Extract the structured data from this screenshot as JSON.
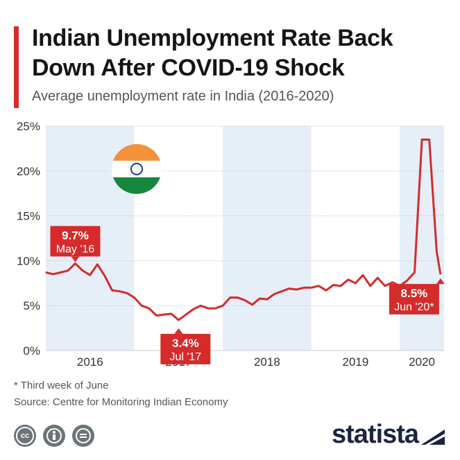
{
  "header": {
    "title": "Indian Unemployment Rate Back Down After COVID-19 Shock",
    "subtitle": "Average unemployment rate in India (2016-2020)"
  },
  "colors": {
    "accent": "#d52b2b",
    "band": "#e6eef8",
    "grid": "#c9cdd2",
    "text": "#333333"
  },
  "footer": {
    "footnote": "* Third week of June",
    "source": "Source: Centre for Monitoring Indian Economy",
    "logo": "statista",
    "license_icons": [
      "creative-commons-icon",
      "attribution-person-icon",
      "no-derivatives-equals-icon"
    ]
  },
  "chart_data": {
    "type": "line",
    "title": "Indian Unemployment Rate Back Down After COVID-19 Shock",
    "subtitle": "Average unemployment rate in India (2016-2020)",
    "xlabel": "",
    "ylabel": "",
    "x_ticks": [
      "2016",
      "2017",
      "2018",
      "2019",
      "2020"
    ],
    "y_ticks": [
      "0%",
      "5%",
      "10%",
      "15%",
      "20%",
      "25%"
    ],
    "ylim": [
      0,
      25
    ],
    "xlim": [
      2016.0,
      2020.5
    ],
    "grid": true,
    "legend": "none",
    "decoration": "india-flag-icon",
    "series": [
      {
        "x": [
          2016.0,
          2016.083,
          2016.167,
          2016.25,
          2016.333,
          2016.417,
          2016.5,
          2016.583,
          2016.667,
          2016.75,
          2016.833,
          2016.917,
          2017.0,
          2017.083,
          2017.167,
          2017.25,
          2017.333,
          2017.417,
          2017.5,
          2017.583,
          2017.667,
          2017.75,
          2017.833,
          2017.917,
          2018.0,
          2018.083,
          2018.167,
          2018.25,
          2018.333,
          2018.417,
          2018.5,
          2018.583,
          2018.667,
          2018.75,
          2018.833,
          2018.917,
          2019.0,
          2019.083,
          2019.167,
          2019.25,
          2019.333,
          2019.417,
          2019.5,
          2019.583,
          2019.667,
          2019.75,
          2019.833,
          2019.917,
          2020.0,
          2020.083,
          2020.167,
          2020.25,
          2020.333,
          2020.417,
          2020.46
        ],
        "values": [
          8.7,
          8.5,
          8.7,
          8.9,
          9.7,
          8.9,
          8.4,
          9.6,
          8.3,
          6.7,
          6.6,
          6.4,
          5.9,
          5.0,
          4.7,
          3.9,
          4.0,
          4.1,
          3.4,
          4.0,
          4.6,
          5.0,
          4.7,
          4.7,
          5.0,
          5.9,
          5.9,
          5.6,
          5.1,
          5.8,
          5.7,
          6.3,
          6.6,
          6.9,
          6.8,
          7.0,
          7.0,
          7.2,
          6.7,
          7.3,
          7.2,
          7.9,
          7.5,
          8.4,
          7.2,
          8.1,
          7.2,
          7.6,
          7.2,
          7.8,
          8.7,
          23.5,
          23.5,
          11.0,
          8.5
        ]
      }
    ],
    "annotations": [
      {
        "value": "9.7%",
        "label": "May '16",
        "x": 2016.333,
        "y": 9.7
      },
      {
        "value": "3.4%",
        "label": "Jul '17",
        "x": 2017.5,
        "y": 3.4
      },
      {
        "value": "8.5%",
        "label": "Jun '20*",
        "x": 2020.46,
        "y": 8.5
      }
    ]
  }
}
